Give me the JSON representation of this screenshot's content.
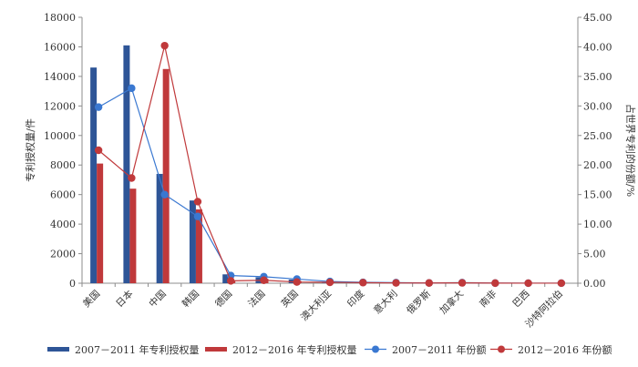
{
  "chart_data": {
    "type": "bar",
    "categories": [
      "美国",
      "日本",
      "中国",
      "韩国",
      "德国",
      "法国",
      "英国",
      "澳大利亚",
      "印度",
      "意大利",
      "俄罗斯",
      "加拿大",
      "南非",
      "巴西",
      "沙特阿拉伯"
    ],
    "ylabel_left": "专利授权量/件",
    "ylabel_right": "占世界专利的份额/%",
    "ylim_left": [
      0,
      18000
    ],
    "ylim_right": [
      0,
      45
    ],
    "yticks_left": [
      "0",
      "2000",
      "4000",
      "6000",
      "8000",
      "10000",
      "12000",
      "14000",
      "16000",
      "18000"
    ],
    "yticks_right": [
      "0.00",
      "5.00",
      "10.00",
      "15.00",
      "20.00",
      "25.00",
      "30.00",
      "35.00",
      "40.00",
      "45.00"
    ],
    "series": [
      {
        "name": "2007－2011 年专利授权量",
        "kind": "bar",
        "axis": "left",
        "color": "#2e5597",
        "values": [
          14600,
          16100,
          7400,
          5600,
          600,
          400,
          250,
          90,
          50,
          30,
          20,
          40,
          10,
          5,
          5
        ]
      },
      {
        "name": "2012－2016 年专利授权量",
        "kind": "bar",
        "axis": "left",
        "color": "#c0393b",
        "values": [
          8100,
          6400,
          14500,
          5000,
          200,
          300,
          150,
          80,
          60,
          25,
          20,
          30,
          10,
          5,
          5
        ]
      },
      {
        "name": "2007－2011 年份额",
        "kind": "line",
        "axis": "right",
        "color": "#3a78d1",
        "values": [
          29.8,
          33.0,
          15.0,
          11.3,
          1.3,
          1.1,
          0.7,
          0.3,
          0.15,
          0.1,
          0.05,
          0.1,
          0.02,
          0.01,
          0.01
        ]
      },
      {
        "name": "2012－2016 年份额",
        "kind": "line",
        "axis": "right",
        "color": "#c0393b",
        "values": [
          22.5,
          17.8,
          40.2,
          13.8,
          0.4,
          0.5,
          0.2,
          0.15,
          0.1,
          0.05,
          0.04,
          0.06,
          0.02,
          0.01,
          0.01
        ]
      }
    ],
    "legend_position": "bottom",
    "grid": false
  }
}
